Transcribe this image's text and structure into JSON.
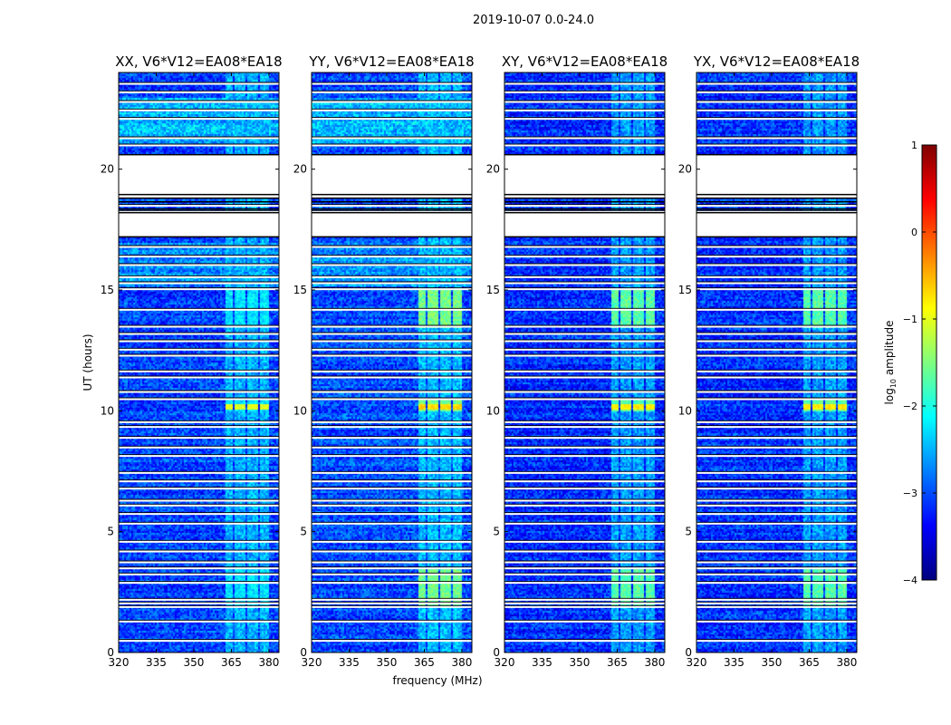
{
  "chart_data": {
    "type": "heatmap",
    "suptitle": "2019-10-07 0.0-24.0",
    "xlabel": "frequency (MHz)",
    "ylabel": "UT (hours)",
    "xlim": [
      320,
      384
    ],
    "ylim": [
      0,
      24
    ],
    "xticks": [
      320,
      335,
      350,
      365,
      380
    ],
    "yticks": [
      0,
      5,
      10,
      15,
      20
    ],
    "panels": [
      {
        "title": "XX, V6*V12=EA08*EA18",
        "background": -3.05,
        "rfi_peak": -2.25,
        "bright_band": -1.0
      },
      {
        "title": "YY, V6*V12=EA08*EA18",
        "background": -3.0,
        "rfi_peak": -1.55,
        "bright_band": -0.7
      },
      {
        "title": "XY, V6*V12=EA08*EA18",
        "background": -3.15,
        "rfi_peak": -1.7,
        "bright_band": -0.8
      },
      {
        "title": "YX, V6*V12=EA08*EA18",
        "background": -3.15,
        "rfi_peak": -1.7,
        "bright_band": -0.8
      }
    ],
    "rfi_channels_mhz": [
      [
        362,
        366
      ],
      [
        366,
        371
      ],
      [
        371,
        376
      ],
      [
        376,
        380
      ]
    ],
    "enhanced_hours": [
      [
        13.5,
        15.0
      ],
      [
        10.0,
        10.5
      ],
      [
        2.0,
        3.5
      ]
    ],
    "flagged_blocks_hours": [
      [
        18.8,
        20.6
      ],
      [
        17.2,
        18.2
      ]
    ],
    "flagged_rows_hours": [
      0.5,
      1.3,
      1.9,
      2.05,
      2.2,
      2.9,
      3.25,
      3.5,
      3.75,
      4.2,
      4.6,
      5.35,
      5.75,
      6.1,
      6.3,
      6.8,
      7.1,
      7.45,
      8.15,
      8.5,
      8.9,
      9.35,
      9.55,
      10.5,
      10.8,
      11.4,
      11.65,
      12.3,
      12.55,
      12.9,
      13.2,
      13.5,
      14.2,
      15.05,
      15.3,
      15.55,
      16.05,
      16.4,
      16.8,
      18.25,
      18.5,
      21.0,
      21.3,
      22.1,
      22.45,
      22.8,
      23.2,
      23.55
    ],
    "colorbar": {
      "label_prefix": "log",
      "label_sub": "10",
      "label_suffix": " amplitude",
      "min": -4,
      "max": 1,
      "ticks": [
        1,
        0,
        -1,
        -2,
        -3,
        -4
      ],
      "tick_labels": [
        "1",
        "0",
        "−1",
        "−2",
        "−3",
        "−4"
      ],
      "colors": [
        "#00007f",
        "#0000ff",
        "#007fff",
        "#00ffff",
        "#7fff7f",
        "#ffff00",
        "#ff7f00",
        "#ff0000",
        "#7f0000"
      ]
    }
  }
}
